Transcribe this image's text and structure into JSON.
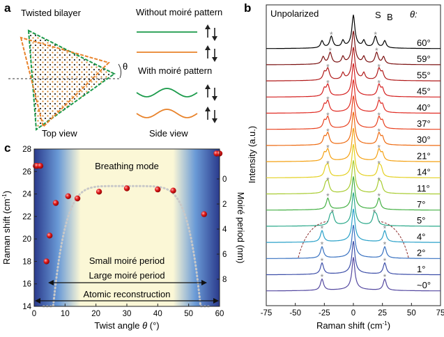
{
  "panel_a": {
    "letter": "a",
    "title": "Twisted bilayer",
    "top_view_label": "Top view",
    "side_view_label": "Side view",
    "without_label": "Without moiré pattern",
    "with_label": "With moiré pattern",
    "angle_symbol": "θ",
    "colors": {
      "green": "#1a9a4a",
      "orange": "#e8822a"
    }
  },
  "panel_b": {
    "letter": "b",
    "corner_label": "Unpolarized",
    "peak_S": "S",
    "peak_B": "B",
    "angle_header": "θ:",
    "xlabel": "Raman shift (cm",
    "xlabel_sup": "-1",
    "xlabel_end": ")",
    "ylabel": "Intensity (a.u.)",
    "marker": "*"
  },
  "panel_c": {
    "letter": "c",
    "breathing_label": "Breathing mode",
    "small_period_label": "Small moiré period",
    "large_period_label": "Large moiré period",
    "atomic_label": "Atomic reconstruction",
    "xlabel_main": "Twist angle ",
    "xlabel_theta": "θ",
    "xlabel_end": " (°)",
    "ylabel_left_main": "Raman shift (cm",
    "ylabel_left_sup": "-1",
    "ylabel_left_end": ")",
    "ylabel_right": "Moiré period (nm)"
  },
  "chart_data": [
    {
      "type": "line",
      "panel": "b",
      "xlim": [
        -75,
        75
      ],
      "xticks": [
        "-75",
        "-50",
        "-25",
        "0",
        "25",
        "50",
        "75"
      ],
      "series": [
        {
          "name": "60°",
          "color": "#000000"
        },
        {
          "name": "59°",
          "color": "#7a1010"
        },
        {
          "name": "55°",
          "color": "#b01818"
        },
        {
          "name": "45°",
          "color": "#d41e1e"
        },
        {
          "name": "40°",
          "color": "#e02a22"
        },
        {
          "name": "37°",
          "color": "#e8401e"
        },
        {
          "name": "30°",
          "color": "#ee6a10"
        },
        {
          "name": "21°",
          "color": "#f4a010"
        },
        {
          "name": "14°",
          "color": "#e4d020"
        },
        {
          "name": "11°",
          "color": "#a8cc30"
        },
        {
          "name": "7°",
          "color": "#44b044"
        },
        {
          "name": "5°",
          "color": "#2aa88a"
        },
        {
          "name": "4°",
          "color": "#28a0c8"
        },
        {
          "name": "2°",
          "color": "#3670c0"
        },
        {
          "name": "1°",
          "color": "#3c4ea8"
        },
        {
          "name": "~0°",
          "color": "#5448a0"
        }
      ],
      "peaks": [
        {
          "angle": "60°",
          "S": 19,
          "B": 27
        },
        {
          "angle": "59°",
          "S": 20,
          "B": 26
        },
        {
          "angle": "55°",
          "S": 22,
          "B": 25
        },
        {
          "angle": "45°",
          "S": 22,
          "B": 25
        },
        {
          "angle": "40°",
          "S": 22,
          "B": 25
        },
        {
          "angle": "37°",
          "S": 22,
          "B": 25
        },
        {
          "angle": "30°",
          "S": 22,
          "B": 25
        },
        {
          "angle": "21°",
          "S": 22,
          "B": 25
        },
        {
          "angle": "14°",
          "S": 22,
          "B": 24
        },
        {
          "angle": "11°",
          "S": 22,
          "B": 24
        },
        {
          "angle": "7°",
          "S": 22,
          "B": 22
        },
        {
          "angle": "5°",
          "S": 18,
          "B": 20
        },
        {
          "angle": "4°",
          "S": 27,
          "B": 27
        },
        {
          "angle": "2°",
          "S": 27,
          "B": 27
        },
        {
          "angle": "1°",
          "S": 27,
          "B": 27
        },
        {
          "angle": "~0°",
          "S": 27,
          "B": 27
        }
      ]
    },
    {
      "type": "scatter",
      "panel": "c",
      "xlim": [
        0,
        60
      ],
      "ylim": [
        14,
        28
      ],
      "xticks": [
        "0",
        "10",
        "20",
        "30",
        "40",
        "50",
        "60"
      ],
      "yticks": [
        "14",
        "16",
        "18",
        "20",
        "22",
        "24",
        "26",
        "28"
      ],
      "y2ticks": [
        "0",
        "2",
        "4",
        "6",
        "8"
      ],
      "x": [
        0.5,
        1.0,
        2.0,
        4.0,
        5.0,
        7.0,
        11.0,
        14.0,
        21.0,
        30.0,
        40.0,
        45.0,
        55.0,
        59.0,
        60.0
      ],
      "y": [
        26.5,
        26.5,
        26.5,
        18.0,
        20.3,
        23.2,
        23.8,
        23.6,
        24.2,
        24.5,
        24.4,
        24.3,
        22.2,
        27.6,
        27.6
      ],
      "fit": "dotted"
    }
  ]
}
